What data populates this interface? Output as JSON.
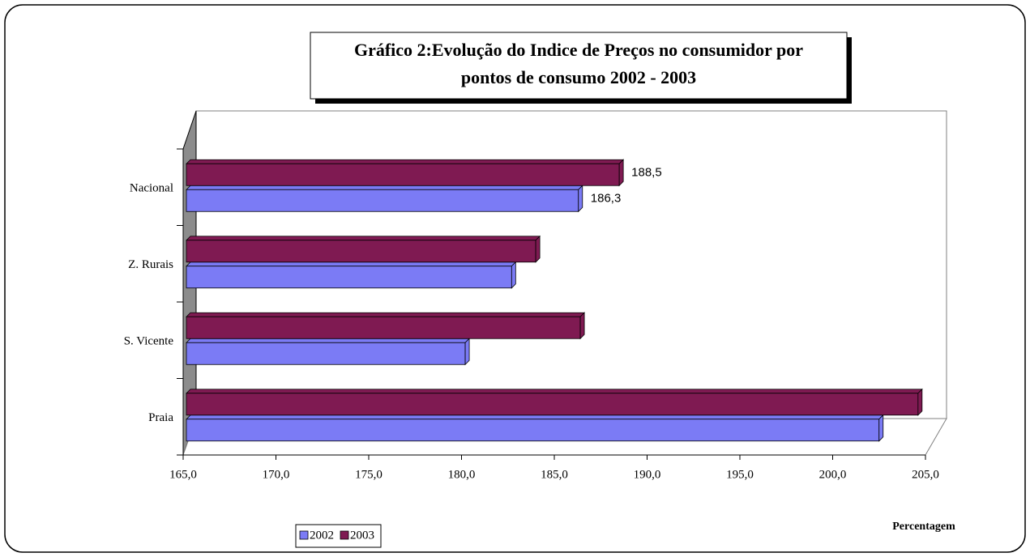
{
  "chart_data": {
    "type": "bar",
    "orientation": "horizontal",
    "title": [
      "Gráfico 2:Evolução do Indice de Preços no consumidor por",
      "pontos de consumo 2002 - 2003"
    ],
    "categories": [
      "Nacional",
      "Z. Rurais",
      "S. Vicente",
      "Praia"
    ],
    "series": [
      {
        "name": "2002",
        "color": "#7b7bf5",
        "values": [
          186.3,
          182.7,
          180.2,
          202.5
        ],
        "value_labels": [
          "186,3",
          null,
          null,
          null
        ]
      },
      {
        "name": "2003",
        "color": "#7f1a52",
        "values": [
          188.5,
          184.0,
          186.4,
          204.6
        ],
        "value_labels": [
          "188,5",
          null,
          null,
          null
        ]
      }
    ],
    "xlim": [
      165,
      205
    ],
    "xticks": [
      {
        "value": 165,
        "label": "165,0"
      },
      {
        "value": 170,
        "label": "170,0"
      },
      {
        "value": 175,
        "label": "175,0"
      },
      {
        "value": 180,
        "label": "180,0"
      },
      {
        "value": 185,
        "label": "185,0"
      },
      {
        "value": 190,
        "label": "190,0"
      },
      {
        "value": 195,
        "label": "195,0"
      },
      {
        "value": 200,
        "label": "200,0"
      },
      {
        "value": 205,
        "label": "205,0"
      }
    ],
    "xlabel": "Percentagem",
    "legend": "bottom"
  }
}
